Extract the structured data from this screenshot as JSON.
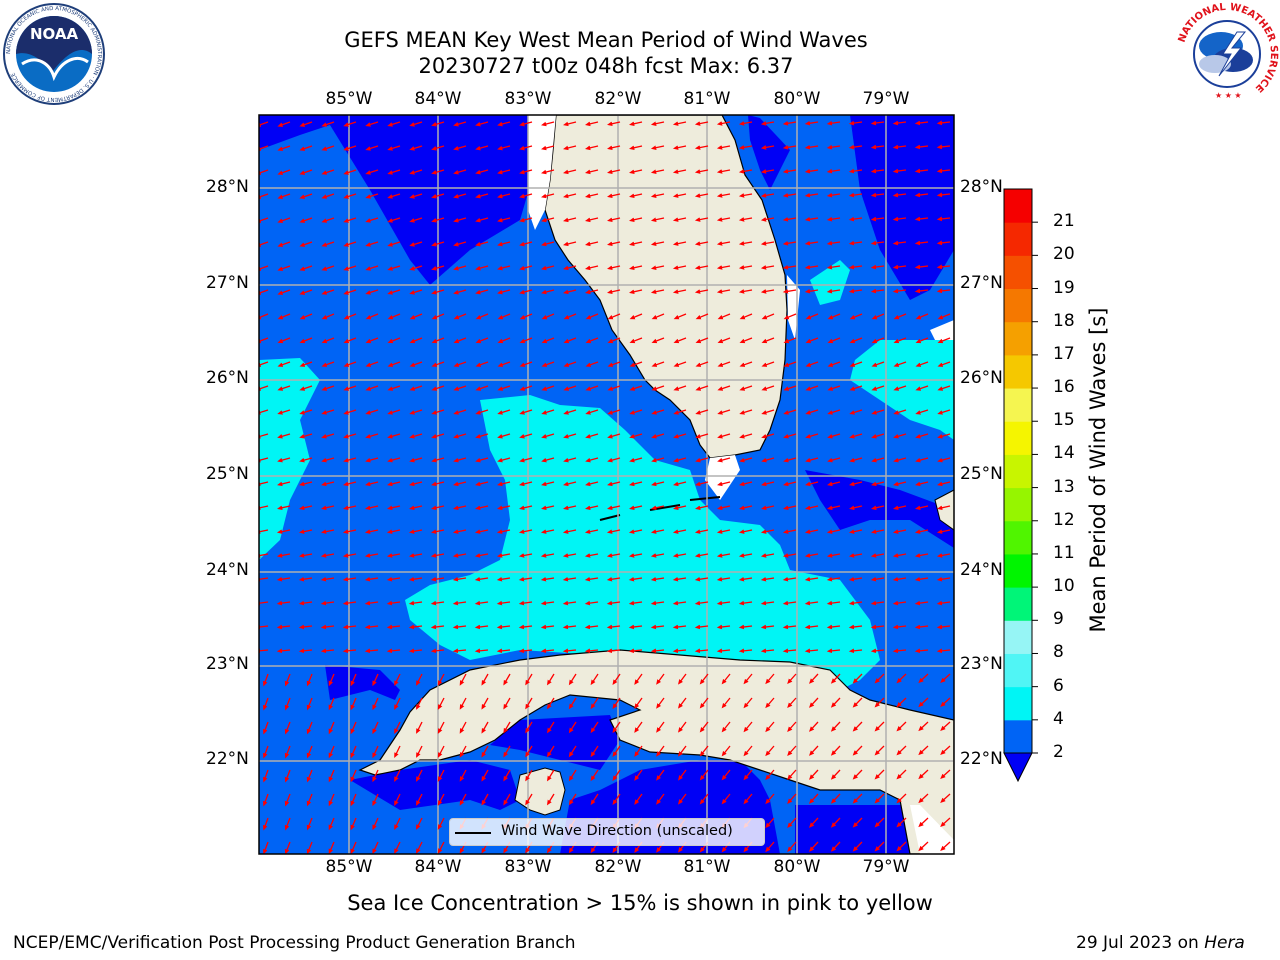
{
  "header": {
    "title_line1": "GEFS MEAN Key West Mean Period of Wind Waves",
    "title_line2": "20230727 t00z 048h fcst   Max: 6.37"
  },
  "logos": {
    "left": {
      "name": "NOAA",
      "ring_text": "NATIONAL OCEANIC AND ATMOSPHERIC ADMINISTRATION · U.S. DEPARTMENT OF COMMERCE"
    },
    "right": {
      "ring_text": "NATIONAL WEATHER SERVICE"
    }
  },
  "map": {
    "longitude_labels": [
      "85°W",
      "84°W",
      "83°W",
      "82°W",
      "81°W",
      "80°W",
      "79°W"
    ],
    "latitude_labels": [
      "28°N",
      "27°N",
      "26°N",
      "25°N",
      "24°N",
      "23°N",
      "22°N"
    ],
    "legend_label": "Wind Wave Direction (unscaled)",
    "colors": {
      "land": "#eeecdc",
      "c2_4": "#0064f5",
      "c4_6": "#00f5f5",
      "lt2": "#0000f5",
      "arrow": "#ff0000",
      "grid": "#b0b0b0",
      "coast": "#000000"
    }
  },
  "colorbar": {
    "title": "Mean Period of Wind Waves [s]",
    "ticks": [
      "2",
      "4",
      "6",
      "8",
      "9",
      "10",
      "11",
      "12",
      "13",
      "14",
      "15",
      "16",
      "17",
      "18",
      "19",
      "20",
      "21"
    ],
    "bins": [
      "#0064f5",
      "#00f5f5",
      "#50f5f5",
      "#96f5f5",
      "#00f578",
      "#00f500",
      "#50f500",
      "#96f500",
      "#c8f500",
      "#f5f500",
      "#f5f550",
      "#f5c800",
      "#f5a000",
      "#f57800",
      "#f55000",
      "#f52800",
      "#f50000"
    ],
    "under_color": "#0000f5"
  },
  "footer": {
    "note": "Sea Ice Concentration > 15% is shown in pink to yellow",
    "credit": "NCEP/EMC/Verification Post Processing Product Generation Branch",
    "date_prefix": "29 Jul 2023 on ",
    "machine": "Hera"
  }
}
